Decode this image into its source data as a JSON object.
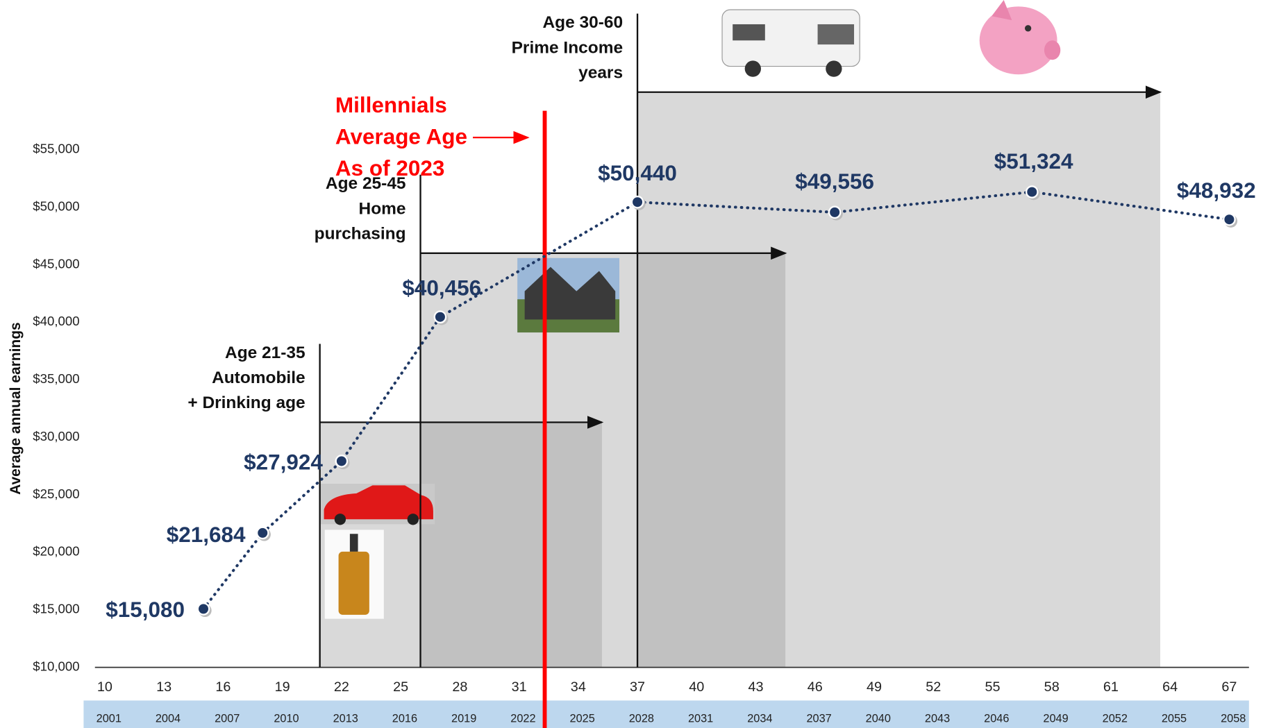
{
  "chart_data": {
    "type": "line",
    "y_label": "Average annual earnings",
    "x": [
      15,
      18,
      22,
      27,
      37,
      47,
      57,
      67
    ],
    "values": [
      15080,
      21684,
      27924,
      40456,
      50440,
      49556,
      51324,
      48932
    ],
    "value_labels": [
      "$15,080",
      "$21,684",
      "$27,924",
      "$40,456",
      "$50,440",
      "$49,556",
      "$51,324",
      "$48,932"
    ],
    "color": "#1f3864",
    "xlim": [
      9.5,
      68
    ],
    "xticks": [
      10,
      13,
      16,
      19,
      22,
      25,
      28,
      31,
      34,
      37,
      40,
      43,
      46,
      49,
      52,
      55,
      58,
      61,
      64,
      67
    ],
    "year_labels": [
      "2001",
      "2004",
      "2007",
      "2010",
      "2013",
      "2016",
      "2019",
      "2022",
      "2025",
      "2028",
      "2031",
      "2034",
      "2037",
      "2040",
      "2043",
      "2046",
      "2049",
      "2052",
      "2055",
      "2058"
    ],
    "ylim": [
      10000,
      55000
    ],
    "yticks": [
      {
        "value": 10000,
        "label": "$10,000"
      },
      {
        "value": 15000,
        "label": "$15,000"
      },
      {
        "value": 20000,
        "label": "$20,000"
      },
      {
        "value": 25000,
        "label": "$25,000"
      },
      {
        "value": 30000,
        "label": "$30,000"
      },
      {
        "value": 35000,
        "label": "$35,000"
      },
      {
        "value": 40000,
        "label": "$40,000"
      },
      {
        "value": 45000,
        "label": "$45,000"
      },
      {
        "value": 50000,
        "label": "$50,000"
      },
      {
        "value": 55000,
        "label": "$55,000"
      }
    ],
    "regions": [
      {
        "lines": [
          "Age 21-35",
          "Automobile",
          "+ Drinking age"
        ],
        "start": 20.9,
        "end": 35.2,
        "top": 31300
      },
      {
        "lines": [
          "Age 25-45",
          "Home",
          "purchasing"
        ],
        "start": 26,
        "end": 44.5,
        "top": 46000
      },
      {
        "lines": [
          "Age 30-60",
          "Prime Income",
          "years"
        ],
        "start": 37,
        "end": 63.5,
        "top": 60000
      }
    ],
    "marker": {
      "lines": [
        "Millennials",
        "Average Age",
        "As of 2023"
      ],
      "x": 32.3,
      "color": "#ff0000"
    }
  }
}
